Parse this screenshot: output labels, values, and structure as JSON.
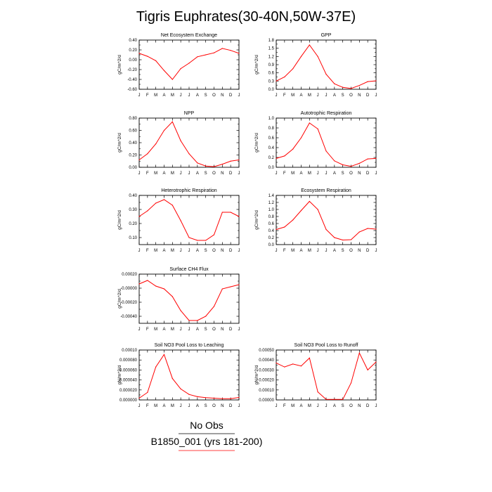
{
  "title": "Tigris Euphrates(30-40N,50W-37E)",
  "legend": {
    "entries": [
      {
        "label": "No Obs",
        "color": "#000000"
      },
      {
        "label": "B1850_001 (yrs 181-200)",
        "color": "#ff0000"
      }
    ]
  },
  "chart_data": [
    {
      "type": "line",
      "title": "Net Ecosystem Exchange",
      "ylabel": "gC/m^2/d",
      "x": [
        "J",
        "F",
        "M",
        "A",
        "M",
        "J",
        "J",
        "A",
        "S",
        "O",
        "N",
        "D",
        "J"
      ],
      "ylim": [
        -0.6,
        0.4
      ],
      "yticks": [
        -0.6,
        -0.4,
        -0.2,
        0.0,
        0.2,
        0.4
      ],
      "ytick_labels": [
        "-0.60",
        "-0.40",
        "-0.20",
        "0.00",
        "0.20",
        "0.40"
      ],
      "series": [
        {
          "color": "#ff0000",
          "values": [
            0.13,
            0.07,
            -0.02,
            -0.22,
            -0.4,
            -0.18,
            -0.07,
            0.06,
            0.1,
            0.14,
            0.23,
            0.19,
            0.13
          ]
        }
      ]
    },
    {
      "type": "line",
      "title": "GPP",
      "ylabel": "gC/m^2/d",
      "x": [
        "J",
        "F",
        "M",
        "A",
        "M",
        "J",
        "J",
        "A",
        "S",
        "O",
        "N",
        "D",
        "J"
      ],
      "ylim": [
        0.0,
        1.8
      ],
      "yticks": [
        0.0,
        0.3,
        0.6,
        0.9,
        1.2,
        1.5,
        1.8
      ],
      "ytick_labels": [
        "0.0",
        "0.3",
        "0.6",
        "0.9",
        "1.2",
        "1.5",
        "1.8"
      ],
      "series": [
        {
          "color": "#ff0000",
          "values": [
            0.3,
            0.45,
            0.75,
            1.2,
            1.62,
            1.2,
            0.55,
            0.2,
            0.07,
            0.03,
            0.14,
            0.28,
            0.31
          ]
        }
      ]
    },
    {
      "type": "line",
      "title": "NPP",
      "ylabel": "gC/m^2/d",
      "x": [
        "J",
        "F",
        "M",
        "A",
        "M",
        "J",
        "J",
        "A",
        "S",
        "O",
        "N",
        "D",
        "J"
      ],
      "ylim": [
        0.0,
        0.8
      ],
      "yticks": [
        0.0,
        0.2,
        0.4,
        0.6,
        0.8
      ],
      "ytick_labels": [
        "0.00",
        "0.20",
        "0.40",
        "0.60",
        "0.80"
      ],
      "series": [
        {
          "color": "#ff0000",
          "values": [
            0.12,
            0.22,
            0.38,
            0.6,
            0.74,
            0.43,
            0.22,
            0.07,
            0.02,
            0.01,
            0.05,
            0.1,
            0.12
          ]
        }
      ]
    },
    {
      "type": "line",
      "title": "Autotrophic Respiration",
      "ylabel": "gC/m^2/d",
      "x": [
        "J",
        "F",
        "M",
        "A",
        "M",
        "J",
        "J",
        "A",
        "S",
        "O",
        "N",
        "D",
        "J"
      ],
      "ylim": [
        0.0,
        1.0
      ],
      "yticks": [
        0.0,
        0.2,
        0.4,
        0.6,
        0.8,
        1.0
      ],
      "ytick_labels": [
        "0.0",
        "0.2",
        "0.4",
        "0.6",
        "0.8",
        "1.0"
      ],
      "series": [
        {
          "color": "#ff0000",
          "values": [
            0.18,
            0.23,
            0.37,
            0.6,
            0.9,
            0.78,
            0.33,
            0.13,
            0.05,
            0.02,
            0.08,
            0.17,
            0.18
          ]
        }
      ]
    },
    {
      "type": "line",
      "title": "Heterotrophic Respiration",
      "ylabel": "gC/m^2/d",
      "x": [
        "J",
        "F",
        "M",
        "A",
        "M",
        "J",
        "J",
        "A",
        "S",
        "O",
        "N",
        "D",
        "J"
      ],
      "ylim": [
        0.05,
        0.4
      ],
      "yticks": [
        0.1,
        0.2,
        0.3,
        0.4
      ],
      "ytick_labels": [
        "0.10",
        "0.20",
        "0.30",
        "0.40"
      ],
      "series": [
        {
          "color": "#ff0000",
          "values": [
            0.25,
            0.29,
            0.345,
            0.37,
            0.33,
            0.22,
            0.1,
            0.08,
            0.08,
            0.12,
            0.28,
            0.28,
            0.25
          ]
        }
      ]
    },
    {
      "type": "line",
      "title": "Ecosystem Respiration",
      "ylabel": "gC/m^2/d",
      "x": [
        "J",
        "F",
        "M",
        "A",
        "M",
        "J",
        "J",
        "A",
        "S",
        "O",
        "N",
        "D",
        "J"
      ],
      "ylim": [
        0.0,
        1.4
      ],
      "yticks": [
        0.0,
        0.2,
        0.4,
        0.6,
        0.8,
        1.0,
        1.2,
        1.4
      ],
      "ytick_labels": [
        "0.0",
        "0.2",
        "0.4",
        "0.6",
        "0.8",
        "1.0",
        "1.2",
        "1.4"
      ],
      "series": [
        {
          "color": "#ff0000",
          "values": [
            0.43,
            0.5,
            0.7,
            0.97,
            1.23,
            1.0,
            0.43,
            0.2,
            0.13,
            0.14,
            0.36,
            0.46,
            0.44
          ]
        }
      ]
    },
    {
      "type": "line",
      "title": "Surface CH4 Flux",
      "ylabel": "gC/m^2/d",
      "x": [
        "J",
        "F",
        "M",
        "A",
        "M",
        "J",
        "J",
        "A",
        "S",
        "O",
        "N",
        "D",
        "J"
      ],
      "ylim": [
        -0.0005,
        0.0002
      ],
      "yticks": [
        -0.0004,
        -0.0002,
        0.0,
        0.0002
      ],
      "ytick_labels": [
        "-0.00040",
        "-0.00020",
        "-0.00000",
        "0.00020"
      ],
      "series": [
        {
          "color": "#ff0000",
          "values": [
            6e-05,
            0.00011,
            3e-05,
            -1e-05,
            -0.00012,
            -0.00032,
            -0.00046,
            -0.00046,
            -0.0004,
            -0.00026,
            -1e-05,
            2e-05,
            5e-05
          ]
        }
      ]
    },
    {
      "type": "line",
      "title": "Soil NO3 Pool Loss to Leaching",
      "ylabel": "gN/m^2/d",
      "x": [
        "J",
        "F",
        "M",
        "A",
        "M",
        "J",
        "J",
        "A",
        "S",
        "O",
        "N",
        "D",
        "J"
      ],
      "ylim": [
        0.0,
        0.0001
      ],
      "yticks": [
        0.0,
        2e-05,
        4e-05,
        6e-05,
        8e-05,
        0.0001
      ],
      "ytick_labels": [
        "0.000000",
        "0.000020",
        "0.000040",
        "0.000060",
        "0.000080",
        "0.00010"
      ],
      "series": [
        {
          "color": "#ff0000",
          "values": [
            3.5e-06,
            1.5e-05,
            6.6e-05,
            9.1e-05,
            4.3e-05,
            2.2e-05,
            1.1e-05,
            6.5e-06,
            4.5e-06,
            3.5e-06,
            2.5e-06,
            2.5e-06,
            5e-06
          ]
        }
      ]
    },
    {
      "type": "line",
      "title": "Soil NO3 Pool Loss to Runoff",
      "ylabel": "gN/m^2/d",
      "x": [
        "J",
        "F",
        "M",
        "A",
        "M",
        "J",
        "J",
        "A",
        "S",
        "O",
        "N",
        "D",
        "J"
      ],
      "ylim": [
        0.0,
        0.0005
      ],
      "yticks": [
        0.0,
        0.0001,
        0.0002,
        0.0003,
        0.0004,
        0.0005
      ],
      "ytick_labels": [
        "0.00000",
        "0.00010",
        "0.00020",
        "0.00030",
        "0.00040",
        "0.00050"
      ],
      "series": [
        {
          "color": "#ff0000",
          "values": [
            0.00037,
            0.00033,
            0.00036,
            0.00034,
            0.00042,
            8e-05,
            5e-06,
            5e-06,
            5e-06,
            0.00017,
            0.00047,
            0.0003,
            0.00038
          ]
        }
      ]
    }
  ]
}
